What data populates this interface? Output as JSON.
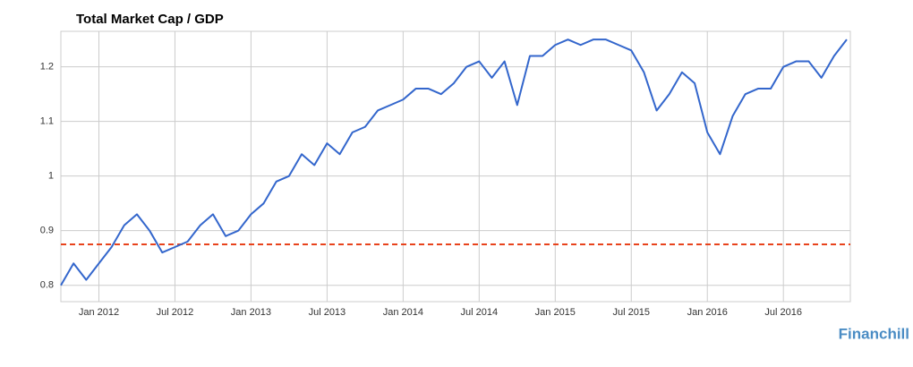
{
  "chart_data": {
    "type": "line",
    "title": "Total Market Cap / GDP",
    "x": [
      "2011-10",
      "2011-11",
      "2011-12",
      "2012-01",
      "2012-02",
      "2012-03",
      "2012-04",
      "2012-05",
      "2012-06",
      "2012-07",
      "2012-08",
      "2012-09",
      "2012-10",
      "2012-11",
      "2012-12",
      "2013-01",
      "2013-02",
      "2013-03",
      "2013-04",
      "2013-05",
      "2013-06",
      "2013-07",
      "2013-08",
      "2013-09",
      "2013-10",
      "2013-11",
      "2013-12",
      "2014-01",
      "2014-02",
      "2014-03",
      "2014-04",
      "2014-05",
      "2014-06",
      "2014-07",
      "2014-08",
      "2014-09",
      "2014-10",
      "2014-11",
      "2014-12",
      "2015-01",
      "2015-02",
      "2015-03",
      "2015-04",
      "2015-05",
      "2015-06",
      "2015-07",
      "2015-08",
      "2015-09",
      "2015-10",
      "2015-11",
      "2015-12",
      "2016-01",
      "2016-02",
      "2016-03",
      "2016-04",
      "2016-05",
      "2016-06",
      "2016-07",
      "2016-08",
      "2016-09",
      "2016-10",
      "2016-11",
      "2016-12"
    ],
    "series": [
      {
        "color": "#3366cc",
        "values": [
          0.8,
          0.84,
          0.81,
          0.84,
          0.87,
          0.91,
          0.93,
          0.9,
          0.86,
          0.87,
          0.88,
          0.91,
          0.93,
          0.89,
          0.9,
          0.93,
          0.95,
          0.99,
          1.0,
          1.04,
          1.02,
          1.06,
          1.04,
          1.08,
          1.09,
          1.12,
          1.13,
          1.14,
          1.16,
          1.16,
          1.15,
          1.17,
          1.2,
          1.21,
          1.18,
          1.21,
          1.13,
          1.22,
          1.22,
          1.24,
          1.25,
          1.24,
          1.25,
          1.25,
          1.24,
          1.23,
          1.19,
          1.12,
          1.15,
          1.19,
          1.17,
          1.08,
          1.04,
          1.11,
          1.15,
          1.16,
          1.16,
          1.2,
          1.21,
          1.21,
          1.18,
          1.22,
          1.25
        ]
      }
    ],
    "reference_line": {
      "value": 0.875,
      "color": "#e8431c"
    },
    "xlim": [
      "2011-10",
      "2016-12"
    ],
    "xticks": [
      {
        "value": "2012-01",
        "label": "Jan 2012"
      },
      {
        "value": "2012-07",
        "label": "Jul 2012"
      },
      {
        "value": "2013-01",
        "label": "Jan 2013"
      },
      {
        "value": "2013-07",
        "label": "Jul 2013"
      },
      {
        "value": "2014-01",
        "label": "Jan 2014"
      },
      {
        "value": "2014-07",
        "label": "Jul 2014"
      },
      {
        "value": "2015-01",
        "label": "Jan 2015"
      },
      {
        "value": "2015-07",
        "label": "Jul 2015"
      },
      {
        "value": "2016-01",
        "label": "Jan 2016"
      },
      {
        "value": "2016-07",
        "label": "Jul 2016"
      }
    ],
    "ylim": [
      0.77,
      1.265
    ],
    "yticks": [
      0.8,
      0.9,
      1,
      1.1,
      1.2
    ],
    "grid": true,
    "watermark": "Financhill"
  }
}
